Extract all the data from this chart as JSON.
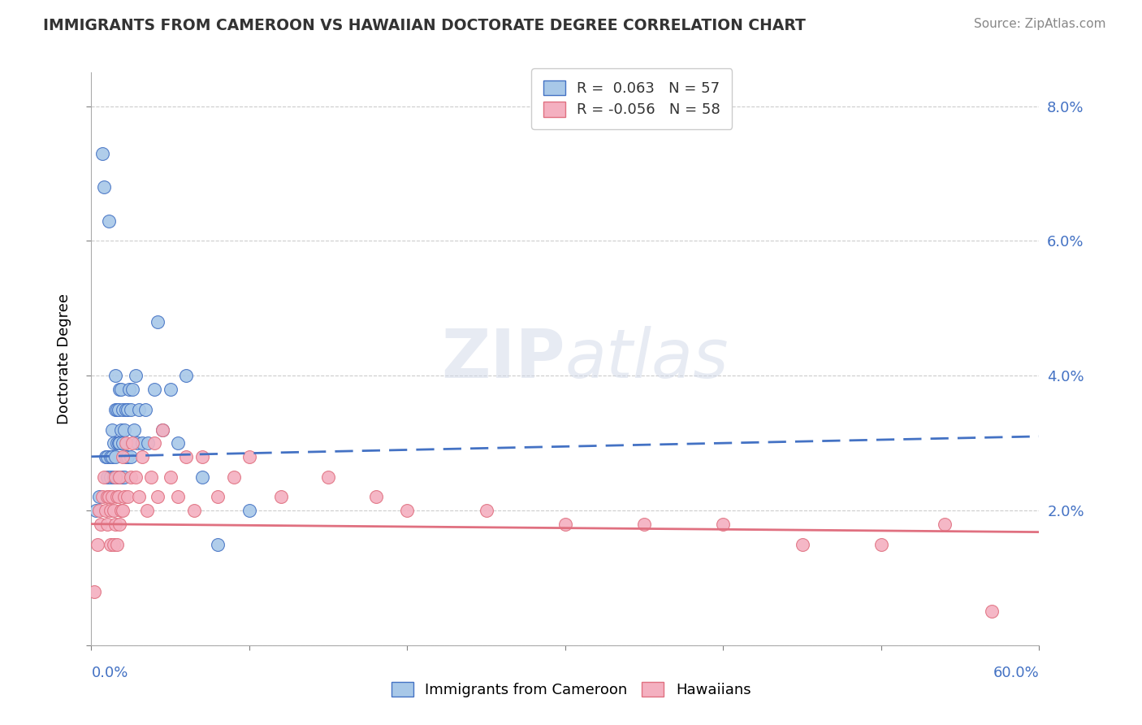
{
  "title": "IMMIGRANTS FROM CAMEROON VS HAWAIIAN DOCTORATE DEGREE CORRELATION CHART",
  "source": "Source: ZipAtlas.com",
  "ylabel": "Doctorate Degree",
  "right_yticklabels": [
    "",
    "2.0%",
    "4.0%",
    "6.0%",
    "8.0%"
  ],
  "right_yticks": [
    0.0,
    0.02,
    0.04,
    0.06,
    0.08
  ],
  "xlim": [
    0.0,
    0.6
  ],
  "ylim": [
    0.0,
    0.085
  ],
  "legend_label1": "Immigrants from Cameroon",
  "legend_label2": "Hawaiians",
  "r1": 0.063,
  "n1": 57,
  "r2": -0.056,
  "n2": 58,
  "color_blue": "#a8c8e8",
  "color_pink": "#f4b0c0",
  "trendline_blue": "#4472c4",
  "trendline_pink": "#e07080",
  "watermark": "ZIPatlas",
  "blue_scatter_x": [
    0.003,
    0.005,
    0.007,
    0.008,
    0.009,
    0.01,
    0.01,
    0.011,
    0.012,
    0.012,
    0.013,
    0.013,
    0.014,
    0.014,
    0.015,
    0.015,
    0.015,
    0.016,
    0.016,
    0.016,
    0.017,
    0.017,
    0.017,
    0.018,
    0.018,
    0.019,
    0.019,
    0.019,
    0.02,
    0.02,
    0.02,
    0.021,
    0.021,
    0.022,
    0.022,
    0.023,
    0.023,
    0.024,
    0.025,
    0.025,
    0.026,
    0.027,
    0.028,
    0.029,
    0.03,
    0.032,
    0.034,
    0.036,
    0.04,
    0.042,
    0.045,
    0.05,
    0.055,
    0.06,
    0.07,
    0.08,
    0.1
  ],
  "blue_scatter_y": [
    0.02,
    0.022,
    0.073,
    0.068,
    0.028,
    0.028,
    0.025,
    0.063,
    0.028,
    0.025,
    0.032,
    0.028,
    0.03,
    0.025,
    0.04,
    0.035,
    0.028,
    0.035,
    0.03,
    0.025,
    0.035,
    0.03,
    0.025,
    0.038,
    0.03,
    0.038,
    0.032,
    0.025,
    0.035,
    0.03,
    0.025,
    0.032,
    0.025,
    0.035,
    0.028,
    0.035,
    0.028,
    0.038,
    0.035,
    0.028,
    0.038,
    0.032,
    0.04,
    0.03,
    0.035,
    0.03,
    0.035,
    0.03,
    0.038,
    0.048,
    0.032,
    0.038,
    0.03,
    0.04,
    0.025,
    0.015,
    0.02
  ],
  "pink_scatter_x": [
    0.002,
    0.004,
    0.005,
    0.006,
    0.007,
    0.008,
    0.009,
    0.01,
    0.01,
    0.011,
    0.012,
    0.012,
    0.013,
    0.014,
    0.014,
    0.015,
    0.015,
    0.016,
    0.016,
    0.017,
    0.018,
    0.018,
    0.019,
    0.02,
    0.02,
    0.021,
    0.022,
    0.023,
    0.025,
    0.026,
    0.028,
    0.03,
    0.032,
    0.035,
    0.038,
    0.04,
    0.042,
    0.045,
    0.05,
    0.055,
    0.06,
    0.065,
    0.07,
    0.08,
    0.09,
    0.1,
    0.12,
    0.15,
    0.18,
    0.2,
    0.25,
    0.3,
    0.35,
    0.4,
    0.45,
    0.5,
    0.54,
    0.57
  ],
  "pink_scatter_y": [
    0.008,
    0.015,
    0.02,
    0.018,
    0.022,
    0.025,
    0.02,
    0.022,
    0.018,
    0.022,
    0.02,
    0.015,
    0.022,
    0.02,
    0.015,
    0.025,
    0.018,
    0.022,
    0.015,
    0.022,
    0.025,
    0.018,
    0.02,
    0.028,
    0.02,
    0.022,
    0.03,
    0.022,
    0.025,
    0.03,
    0.025,
    0.022,
    0.028,
    0.02,
    0.025,
    0.03,
    0.022,
    0.032,
    0.025,
    0.022,
    0.028,
    0.02,
    0.028,
    0.022,
    0.025,
    0.028,
    0.022,
    0.025,
    0.022,
    0.02,
    0.02,
    0.018,
    0.018,
    0.018,
    0.015,
    0.015,
    0.018,
    0.005
  ]
}
